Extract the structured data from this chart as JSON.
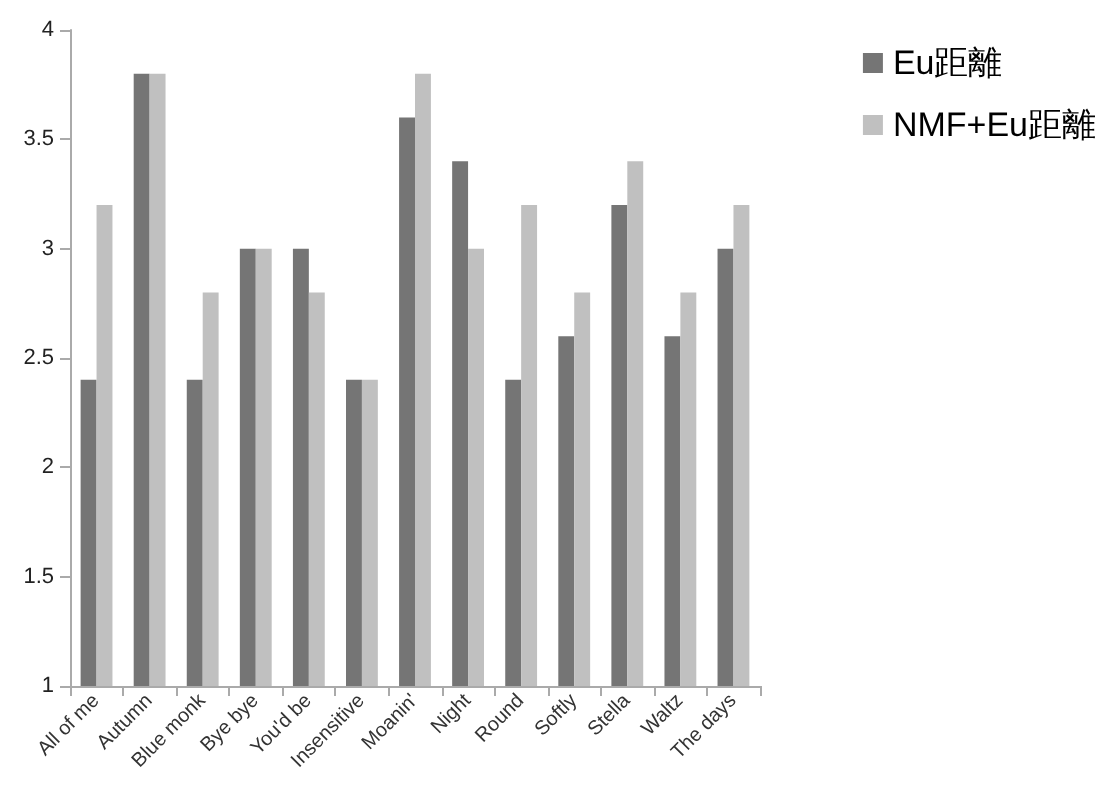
{
  "chart_data": {
    "type": "bar",
    "categories": [
      "All of me",
      "Autumn",
      "Blue monk",
      "Bye bye",
      "You'd be",
      "Insensitive",
      "Moanin'",
      "Night",
      "Round",
      "Softly",
      "Stella",
      "Waltz",
      "The days"
    ],
    "series": [
      {
        "name": "Eu距離",
        "color": "#757575",
        "values": [
          2.4,
          3.8,
          2.4,
          3.0,
          3.0,
          2.4,
          3.6,
          3.4,
          2.4,
          2.6,
          3.2,
          2.6,
          3.0
        ]
      },
      {
        "name": "NMF+Eu距離",
        "color": "#c0c0c0",
        "values": [
          3.2,
          3.8,
          2.8,
          3.0,
          2.8,
          2.4,
          3.8,
          3.0,
          3.2,
          2.8,
          3.4,
          2.8,
          3.2
        ]
      }
    ],
    "ylim": [
      1,
      4
    ],
    "yticks": [
      1,
      1.5,
      2,
      2.5,
      3,
      3.5,
      4
    ],
    "grid": false,
    "legend": "top right"
  }
}
